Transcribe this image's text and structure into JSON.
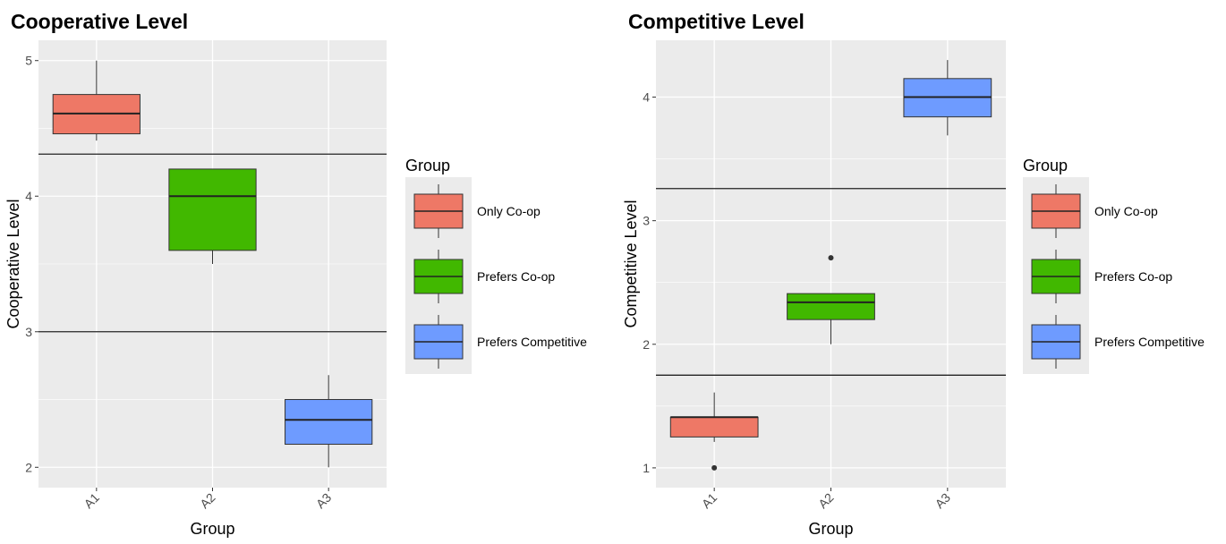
{
  "chart_data": [
    {
      "type": "box",
      "title": "Cooperative Level",
      "xlabel": "Group",
      "ylabel": "Cooperative Level",
      "ylim": [
        1.85,
        5.15
      ],
      "yticks": [
        2,
        3,
        4,
        5
      ],
      "categories": [
        "A1",
        "A2",
        "A3"
      ],
      "boxes": [
        {
          "group": "Only Co-op",
          "min": 4.41,
          "q1": 4.46,
          "median": 4.61,
          "q3": 4.75,
          "max": 5.0,
          "outliers": []
        },
        {
          "group": "Prefers Co-op",
          "min": 3.5,
          "q1": 3.6,
          "median": 4.0,
          "q3": 4.2,
          "max": 4.2,
          "outliers": []
        },
        {
          "group": "Prefers Competitive",
          "min": 2.0,
          "q1": 2.17,
          "median": 2.35,
          "q3": 2.5,
          "max": 2.68,
          "outliers": []
        }
      ],
      "hlines": [
        4.31,
        3.0
      ],
      "legend": {
        "title": "Group",
        "entries": [
          "Only Co-op",
          "Prefers Co-op",
          "Prefers Competitive"
        ],
        "placement": "right"
      },
      "grid": true
    },
    {
      "type": "box",
      "title": "Competitive Level",
      "xlabel": "Group",
      "ylabel": "Competitive Level",
      "ylim": [
        0.84,
        4.46
      ],
      "yticks": [
        1,
        2,
        3,
        4
      ],
      "categories": [
        "A1",
        "A2",
        "A3"
      ],
      "boxes": [
        {
          "group": "Only Co-op",
          "min": 1.21,
          "q1": 1.25,
          "median": 1.41,
          "q3": 1.41,
          "max": 1.61,
          "outliers": [
            1.0
          ]
        },
        {
          "group": "Prefers Co-op",
          "min": 2.0,
          "q1": 2.2,
          "median": 2.34,
          "q3": 2.41,
          "max": 2.41,
          "outliers": [
            2.7
          ]
        },
        {
          "group": "Prefers Competitive",
          "min": 3.69,
          "q1": 3.84,
          "median": 4.0,
          "q3": 4.15,
          "max": 4.3,
          "outliers": []
        }
      ],
      "hlines": [
        3.26,
        1.75
      ],
      "legend": {
        "title": "Group",
        "entries": [
          "Only Co-op",
          "Prefers Co-op",
          "Prefers Competitive"
        ],
        "placement": "right"
      },
      "grid": true
    }
  ],
  "colors": {
    "Only Co-op": "#ee7866",
    "Prefers Co-op": "#41b800",
    "Prefers Competitive": "#6e9bff",
    "panel": "#ebebeb"
  }
}
